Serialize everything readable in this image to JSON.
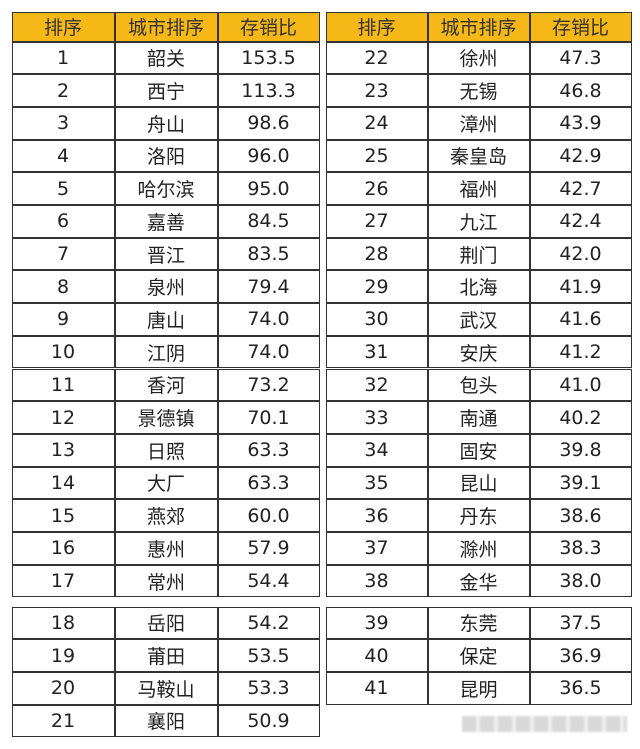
{
  "headers": [
    "排序",
    "城市排序",
    "存销比"
  ],
  "header_color": "#F6B817",
  "rows": [
    [
      "1",
      "韶关",
      "153.5"
    ],
    [
      "2",
      "西宁",
      "113.3"
    ],
    [
      "3",
      "舟山",
      "98.6"
    ],
    [
      "4",
      "洛阳",
      "96.0"
    ],
    [
      "5",
      "哈尔滨",
      "95.0"
    ],
    [
      "6",
      "嘉善",
      "84.5"
    ],
    [
      "7",
      "晋江",
      "83.5"
    ],
    [
      "8",
      "泉州",
      "79.4"
    ],
    [
      "9",
      "唐山",
      "74.0"
    ],
    [
      "10",
      "江阴",
      "74.0"
    ],
    [
      "11",
      "香河",
      "73.2"
    ],
    [
      "12",
      "景德镇",
      "70.1"
    ],
    [
      "13",
      "日照",
      "63.3"
    ],
    [
      "14",
      "大厂",
      "63.3"
    ],
    [
      "15",
      "燕郊",
      "60.0"
    ],
    [
      "16",
      "惠州",
      "57.9"
    ],
    [
      "17",
      "常州",
      "54.4"
    ],
    [
      "18",
      "岳阳",
      "54.2"
    ],
    [
      "19",
      "莆田",
      "53.5"
    ],
    [
      "20",
      "马鞍山",
      "53.3"
    ],
    [
      "21",
      "襄阳",
      "50.9"
    ],
    [
      "22",
      "徐州",
      "47.3"
    ],
    [
      "23",
      "无锡",
      "46.8"
    ],
    [
      "24",
      "漳州",
      "43.9"
    ],
    [
      "25",
      "秦皇岛",
      "42.9"
    ],
    [
      "26",
      "福州",
      "42.7"
    ],
    [
      "27",
      "九江",
      "42.4"
    ],
    [
      "28",
      "荆门",
      "42.0"
    ],
    [
      "29",
      "北海",
      "41.9"
    ],
    [
      "30",
      "武汉",
      "41.6"
    ],
    [
      "31",
      "安庆",
      "41.2"
    ],
    [
      "32",
      "包头",
      "41.0"
    ],
    [
      "33",
      "南通",
      "40.2"
    ],
    [
      "34",
      "固安",
      "39.8"
    ],
    [
      "35",
      "昆山",
      "39.1"
    ],
    [
      "36",
      "丹东",
      "38.6"
    ],
    [
      "37",
      "滁州",
      "38.3"
    ],
    [
      "38",
      "金华",
      "38.0"
    ],
    [
      "39",
      "东莞",
      "37.5"
    ],
    [
      "40",
      "保定",
      "36.9"
    ],
    [
      "41",
      "昆明",
      "36.5"
    ]
  ]
}
